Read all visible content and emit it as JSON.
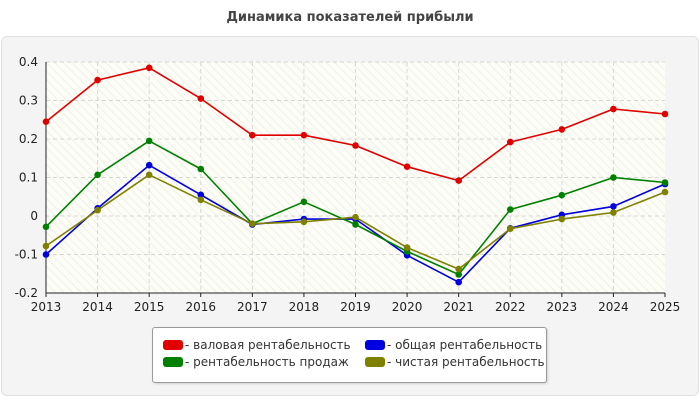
{
  "chart_data": {
    "type": "line",
    "title": "Динамика показателей прибыли",
    "categories": [
      "2013",
      "2014",
      "2015",
      "2016",
      "2017",
      "2018",
      "2019",
      "2020",
      "2021",
      "2022",
      "2023",
      "2024",
      "2025"
    ],
    "ylim": [
      -0.2,
      0.4
    ],
    "yticks": [
      "0.4",
      "0.3",
      "0.2",
      "0.1",
      "0",
      "-0.1",
      "-0.2"
    ],
    "ytick_values": [
      0.4,
      0.3,
      0.2,
      0.1,
      0,
      -0.1,
      -0.2
    ],
    "grid": true,
    "legend_position": "bottom",
    "series": [
      {
        "name": "- валовая рентабельность",
        "color": "#e00000",
        "values": [
          0.245,
          0.353,
          0.385,
          0.305,
          0.21,
          0.21,
          0.183,
          0.128,
          0.092,
          0.192,
          0.225,
          0.278,
          0.265
        ]
      },
      {
        "name": "- общая рентабельность",
        "color": "#0000e0",
        "values": [
          -0.1,
          0.02,
          0.132,
          0.055,
          -0.022,
          -0.008,
          -0.008,
          -0.102,
          -0.172,
          -0.032,
          0.003,
          0.025,
          0.083
        ]
      },
      {
        "name": "- рентабельность продаж",
        "color": "#008000",
        "values": [
          -0.028,
          0.107,
          0.195,
          0.122,
          -0.02,
          0.037,
          -0.022,
          -0.092,
          -0.152,
          0.017,
          0.054,
          0.1,
          0.087
        ]
      },
      {
        "name": "- чистая рентабельность",
        "color": "#808000",
        "values": [
          -0.078,
          0.015,
          0.107,
          0.042,
          -0.02,
          -0.015,
          -0.003,
          -0.082,
          -0.138,
          -0.033,
          -0.008,
          0.009,
          0.062
        ]
      }
    ]
  }
}
